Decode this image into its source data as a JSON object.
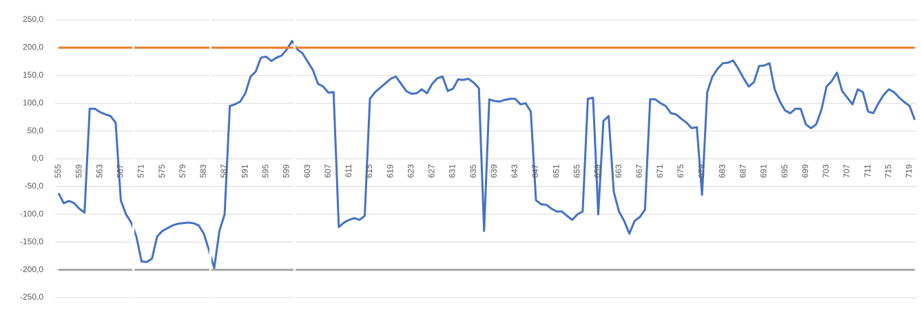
{
  "chart_data": {
    "type": "line",
    "categories": [
      "555",
      null,
      null,
      null,
      "559",
      null,
      null,
      null,
      "563",
      null,
      null,
      null,
      "567",
      null,
      null,
      null,
      "571",
      null,
      null,
      null,
      "575",
      null,
      null,
      null,
      "579",
      null,
      null,
      null,
      "583",
      null,
      null,
      null,
      "587",
      null,
      null,
      null,
      "591",
      null,
      null,
      null,
      "595",
      null,
      null,
      null,
      "599",
      null,
      null,
      null,
      "603",
      null,
      null,
      null,
      "607",
      null,
      null,
      null,
      "611",
      null,
      null,
      null,
      "615",
      null,
      null,
      null,
      "619",
      null,
      null,
      null,
      "623",
      null,
      null,
      null,
      "627",
      null,
      null,
      null,
      "631",
      null,
      null,
      null,
      "635",
      null,
      null,
      null,
      "639",
      null,
      null,
      null,
      "643",
      null,
      null,
      null,
      "647",
      null,
      null,
      null,
      "651",
      null,
      null,
      null,
      "655",
      null,
      null,
      null,
      "659",
      null,
      null,
      null,
      "663",
      null,
      null,
      null,
      "667",
      null,
      null,
      null,
      "671",
      null,
      null,
      null,
      "675",
      null,
      null,
      null,
      "679",
      null,
      null,
      null,
      "683",
      null,
      null,
      null,
      "687",
      null,
      null,
      null,
      "691",
      null,
      null,
      null,
      "695",
      null,
      null,
      null,
      "699",
      null,
      null,
      null,
      "703",
      null,
      null,
      null,
      "707",
      null,
      null,
      null,
      "711",
      null,
      null,
      null,
      "715",
      null,
      null,
      null,
      "719",
      null
    ],
    "series": [
      {
        "color": "#4472c4",
        "values": [
          -62,
          -80,
          -76,
          -80,
          -90,
          -97,
          90,
          90,
          84,
          80,
          77,
          65,
          -75,
          -100,
          -115,
          -140,
          -185,
          -186,
          -180,
          -140,
          -130,
          -125,
          -120,
          -117,
          -116,
          -115,
          -116,
          -120,
          -135,
          -165,
          -197,
          -130,
          -100,
          95,
          98,
          103,
          118,
          148,
          157,
          182,
          184,
          176,
          182,
          186,
          197,
          212,
          197,
          190,
          175,
          160,
          135,
          130,
          119,
          120,
          -123,
          -115,
          -110,
          -107,
          -110,
          -103,
          108,
          120,
          128,
          136,
          144,
          148,
          135,
          122,
          117,
          118,
          125,
          118,
          135,
          145,
          148,
          122,
          126,
          143,
          142,
          144,
          137,
          127,
          -130,
          107,
          104,
          103,
          106,
          108,
          108,
          98,
          100,
          85,
          -75,
          -82,
          -83,
          -90,
          -95,
          -95,
          -103,
          -110,
          -100,
          -95,
          108,
          110,
          -100,
          68,
          77,
          -60,
          -95,
          -112,
          -135,
          -112,
          -105,
          -92,
          107,
          107,
          100,
          95,
          82,
          80,
          72,
          65,
          55,
          57,
          -65,
          120,
          148,
          162,
          172,
          173,
          177,
          162,
          145,
          130,
          138,
          167,
          168,
          172,
          125,
          103,
          87,
          82,
          90,
          90,
          62,
          55,
          62,
          88,
          130,
          140,
          155,
          122,
          110,
          98,
          125,
          120,
          85,
          82,
          100,
          115,
          125,
          120,
          110,
          102,
          95,
          70
        ]
      },
      {
        "color": "#ed7d31",
        "values": [
          200,
          200,
          200,
          200,
          200,
          200,
          200,
          200,
          200,
          200,
          200,
          200,
          200,
          200,
          200,
          200,
          200,
          200,
          200,
          200,
          200,
          200,
          200,
          200,
          200,
          200,
          200,
          200,
          200,
          200,
          200,
          200,
          200,
          200,
          200,
          200,
          200,
          200,
          200,
          200,
          200,
          200,
          200,
          200,
          200,
          200,
          200,
          200,
          200,
          200,
          200,
          200,
          200,
          200,
          200,
          200,
          200,
          200,
          200,
          200,
          200,
          200,
          200,
          200,
          200,
          200,
          200,
          200,
          200,
          200,
          200,
          200,
          200,
          200,
          200,
          200,
          200,
          200,
          200,
          200,
          200,
          200,
          200,
          200,
          200,
          200,
          200,
          200,
          200,
          200,
          200,
          200,
          200,
          200,
          200,
          200,
          200,
          200,
          200,
          200,
          200,
          200,
          200,
          200,
          200,
          200,
          200,
          200,
          200,
          200,
          200,
          200,
          200,
          200,
          200,
          200,
          200,
          200,
          200,
          200,
          200,
          200,
          200,
          200,
          200,
          200,
          200,
          200,
          200,
          200,
          200,
          200,
          200,
          200,
          200,
          200,
          200,
          200,
          200,
          200,
          200,
          200,
          200,
          200,
          200,
          200,
          200,
          200,
          200,
          200,
          200,
          200,
          200,
          200,
          200,
          200,
          200,
          200,
          200,
          200,
          200,
          200,
          200,
          200,
          200,
          200
        ]
      },
      {
        "color": "#a5a5a5",
        "values": [
          -200,
          -200,
          -200,
          -200,
          -200,
          -200,
          -200,
          -200,
          -200,
          -200,
          -200,
          -200,
          -200,
          -200,
          -200,
          -200,
          -200,
          -200,
          -200,
          -200,
          -200,
          -200,
          -200,
          -200,
          -200,
          -200,
          -200,
          -200,
          -200,
          -200,
          -200,
          -200,
          -200,
          -200,
          -200,
          -200,
          -200,
          -200,
          -200,
          -200,
          -200,
          -200,
          -200,
          -200,
          -200,
          -200,
          -200,
          -200,
          -200,
          -200,
          -200,
          -200,
          -200,
          -200,
          -200,
          -200,
          -200,
          -200,
          -200,
          -200,
          -200,
          -200,
          -200,
          -200,
          -200,
          -200,
          -200,
          -200,
          -200,
          -200,
          -200,
          -200,
          -200,
          -200,
          -200,
          -200,
          -200,
          -200,
          -200,
          -200,
          -200,
          -200,
          -200,
          -200,
          -200,
          -200,
          -200,
          -200,
          -200,
          -200,
          -200,
          -200,
          -200,
          -200,
          -200,
          -200,
          -200,
          -200,
          -200,
          -200,
          -200,
          -200,
          -200,
          -200,
          -200,
          -200,
          -200,
          -200,
          -200,
          -200,
          -200,
          -200,
          -200,
          -200,
          -200,
          -200,
          -200,
          -200,
          -200,
          -200,
          -200,
          -200,
          -200,
          -200,
          -200,
          -200,
          -200,
          -200,
          -200,
          -200,
          -200,
          -200,
          -200,
          -200,
          -200,
          -200,
          -200,
          -200,
          -200,
          -200,
          -200,
          -200,
          -200,
          -200,
          -200,
          -200,
          -200,
          -200,
          -200,
          -200,
          -200,
          -200,
          -200,
          -200,
          -200,
          -200,
          -200,
          -200,
          -200,
          -200,
          -200,
          -200,
          -200,
          -200,
          -200,
          -200
        ]
      }
    ],
    "ylim": [
      -250,
      250
    ],
    "yticks": [
      {
        "value": -250,
        "label": "-250,0"
      },
      {
        "value": -200,
        "label": "-200,0"
      },
      {
        "value": -150,
        "label": "-150,0"
      },
      {
        "value": -100,
        "label": "-100,0"
      },
      {
        "value": -50,
        "label": "-50,0"
      },
      {
        "value": 0,
        "label": "0,0"
      },
      {
        "value": 50,
        "label": "50,0"
      },
      {
        "value": 100,
        "label": "100,0"
      },
      {
        "value": 150,
        "label": "150,0"
      },
      {
        "value": 200,
        "label": "200,0"
      },
      {
        "value": 250,
        "label": "250,0"
      }
    ],
    "grid": true
  }
}
